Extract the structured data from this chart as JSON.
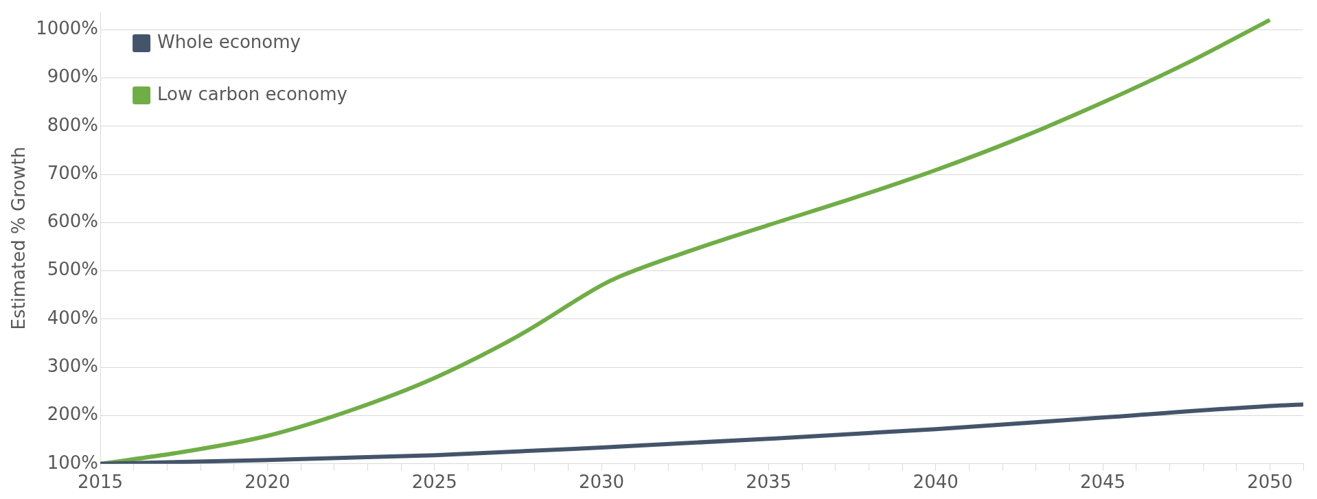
{
  "chart_data": {
    "type": "line",
    "ylabel": "Estimated % Growth",
    "xlim": [
      2015,
      2051
    ],
    "xticks": [
      2015,
      {
        "value": 2016,
        "label": null
      },
      {
        "value": 2017,
        "label": null
      },
      {
        "value": 2018,
        "label": null
      },
      {
        "value": 2019,
        "label": null
      },
      2020,
      {
        "value": 2021,
        "label": null
      },
      {
        "value": 2022,
        "label": null
      },
      {
        "value": 2023,
        "label": null
      },
      {
        "value": 2024,
        "label": null
      },
      2025,
      {
        "value": 2026,
        "label": null
      },
      {
        "value": 2027,
        "label": null
      },
      {
        "value": 2028,
        "label": null
      },
      {
        "value": 2029,
        "label": null
      },
      2030,
      {
        "value": 2031,
        "label": null
      },
      {
        "value": 2032,
        "label": null
      },
      {
        "value": 2033,
        "label": null
      },
      {
        "value": 2034,
        "label": null
      },
      2035,
      {
        "value": 2036,
        "label": null
      },
      {
        "value": 2037,
        "label": null
      },
      {
        "value": 2038,
        "label": null
      },
      {
        "value": 2039,
        "label": null
      },
      2040,
      {
        "value": 2041,
        "label": null
      },
      {
        "value": 2042,
        "label": null
      },
      {
        "value": 2043,
        "label": null
      },
      {
        "value": 2044,
        "label": null
      },
      2045,
      {
        "value": 2046,
        "label": null
      },
      {
        "value": 2047,
        "label": null
      },
      {
        "value": 2048,
        "label": null
      },
      {
        "value": 2049,
        "label": null
      },
      2050,
      {
        "value": 2051,
        "label": null
      }
    ],
    "ylim": [
      100,
      1035
    ],
    "yticks": [
      {
        "value": 100,
        "label": "100%"
      },
      {
        "value": 200,
        "label": "200%"
      },
      {
        "value": 300,
        "label": "300%"
      },
      {
        "value": 400,
        "label": "400%"
      },
      {
        "value": 500,
        "label": "500%"
      },
      {
        "value": 600,
        "label": "600%"
      },
      {
        "value": 700,
        "label": "700%"
      },
      {
        "value": 800,
        "label": "800%"
      },
      {
        "value": 900,
        "label": "900%"
      },
      {
        "value": 1000,
        "label": "1000%"
      }
    ],
    "grid": "y",
    "legend": "top left",
    "marker": "none",
    "line_style": "solid",
    "series": [
      {
        "name": "Whole economy",
        "color": "#44546a",
        "x": [
          2015,
          2020,
          2025,
          2030,
          2035,
          2040,
          2045,
          2050,
          2051
        ],
        "values": [
          100,
          108,
          118,
          134,
          152,
          172,
          196,
          220,
          223
        ]
      },
      {
        "name": "Low carbon economy",
        "color": "#70ad47",
        "x": [
          2015,
          2017.5,
          2020,
          2022.5,
          2025,
          2027.5,
          2030,
          2030.5,
          2032.5,
          2035,
          2037.5,
          2040,
          2042.5,
          2045,
          2047.5,
          2050
        ],
        "values": [
          100,
          125,
          158,
          211,
          278,
          365,
          470,
          487,
          538,
          595,
          650,
          709,
          775,
          849,
          930,
          1020
        ]
      }
    ]
  }
}
